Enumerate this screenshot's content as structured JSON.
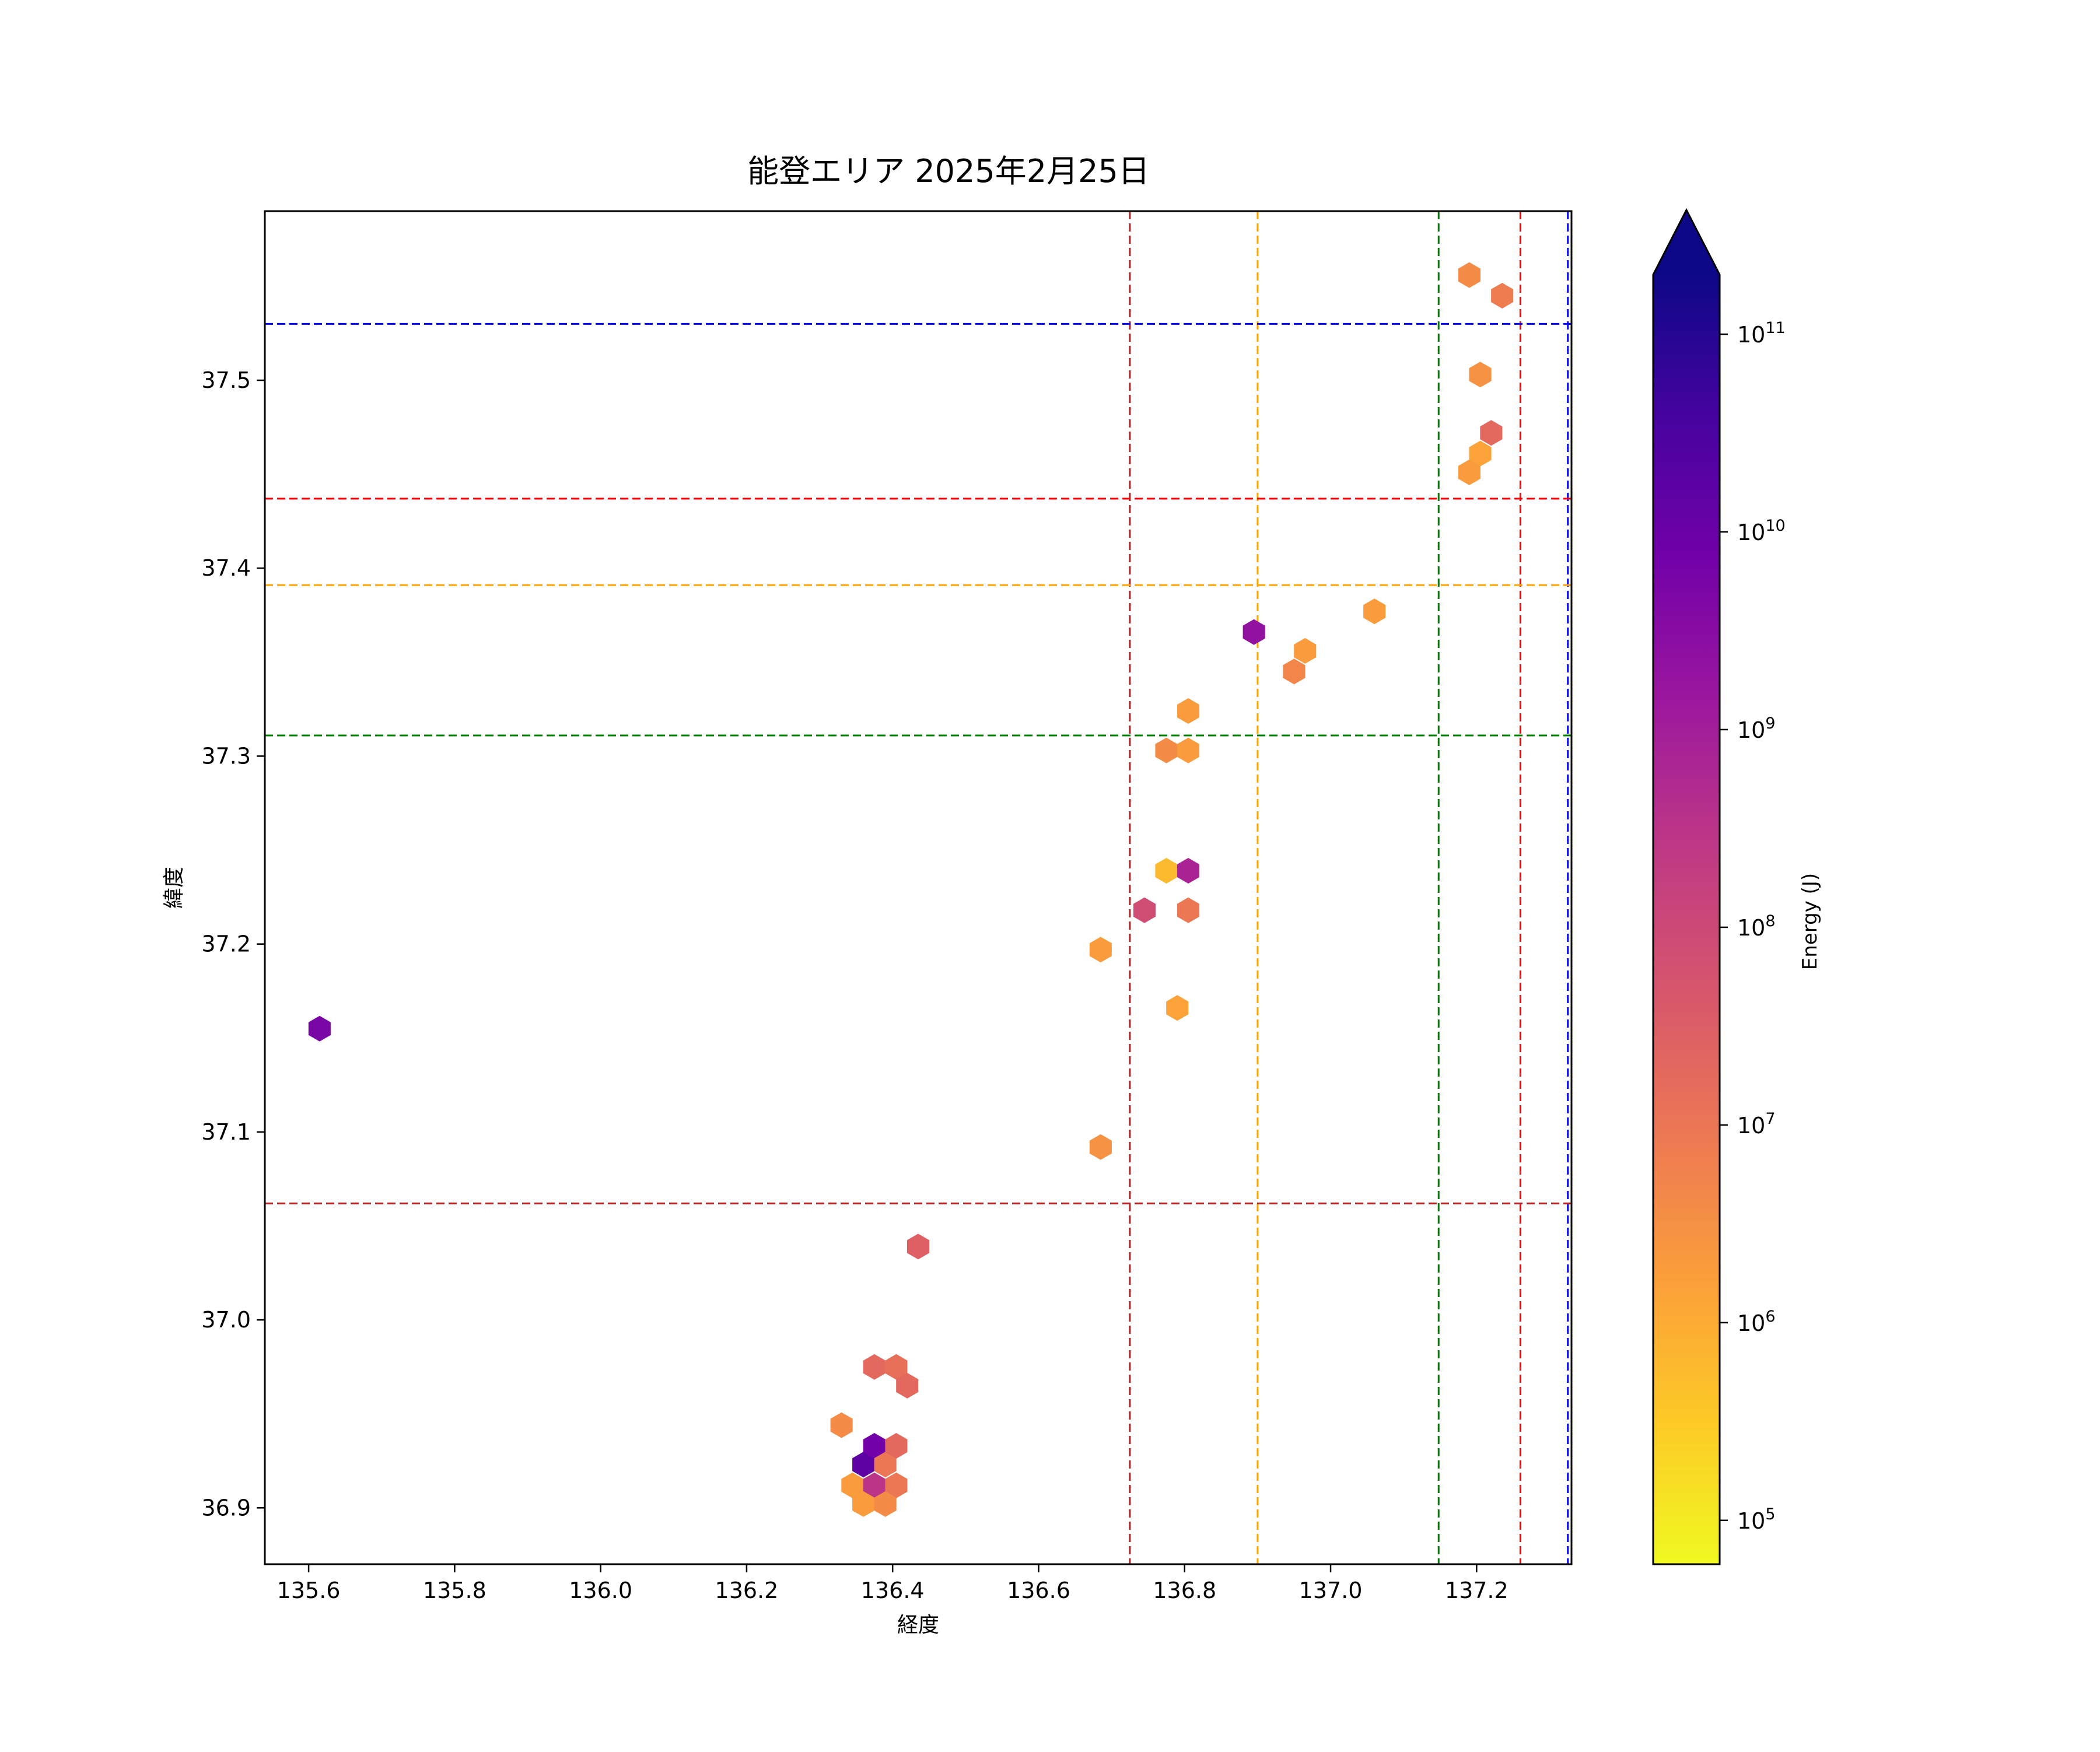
{
  "chart_data": {
    "type": "hexbin",
    "title": "能登エリア 2025年2月25日",
    "xlabel": "経度",
    "ylabel": "緯度",
    "xlim": [
      135.54,
      137.33
    ],
    "ylim": [
      36.87,
      37.59
    ],
    "xticks": [
      "135.6",
      "135.8",
      "136.0",
      "136.2",
      "136.4",
      "136.6",
      "136.8",
      "137.0",
      "137.2"
    ],
    "xtick_values": [
      135.6,
      135.8,
      136.0,
      136.2,
      136.4,
      136.6,
      136.8,
      137.0,
      137.2
    ],
    "yticks": [
      "36.9",
      "37.0",
      "37.1",
      "37.2",
      "37.3",
      "37.4",
      "37.5"
    ],
    "ytick_values": [
      36.9,
      37.0,
      37.1,
      37.2,
      37.3,
      37.4,
      37.5
    ],
    "grid": false,
    "colorbar": {
      "label": "Energy (J)",
      "scale": "log",
      "colormap": "plasma_r",
      "range": [
        60000,
        200000000000
      ],
      "extend": "max",
      "tick_values": [
        100000,
        1000000,
        10000000,
        100000000,
        1000000000,
        10000000000,
        100000000000
      ],
      "tick_bases": [
        "10",
        "10",
        "10",
        "10",
        "10",
        "10",
        "10"
      ],
      "tick_exponents": [
        "5",
        "6",
        "7",
        "8",
        "9",
        "10",
        "11"
      ]
    },
    "reference_lines": {
      "vertical": [
        {
          "x": 136.725,
          "color": "#b22222"
        },
        {
          "x": 136.9,
          "color": "#ffa500"
        },
        {
          "x": 137.148,
          "color": "#008000"
        },
        {
          "x": 137.26,
          "color": "#ff0000"
        },
        {
          "x": 137.325,
          "color": "#0000ff"
        }
      ],
      "horizontal": [
        {
          "y": 37.53,
          "color": "#0000ff"
        },
        {
          "y": 37.437,
          "color": "#ff0000"
        },
        {
          "y": 37.391,
          "color": "#ffa500"
        },
        {
          "y": 37.311,
          "color": "#008000"
        },
        {
          "y": 37.062,
          "color": "#b22222"
        }
      ]
    },
    "points": [
      {
        "lon": 135.615,
        "lat": 37.155,
        "energy": 5000000000
      },
      {
        "lon": 136.33,
        "lat": 36.944,
        "energy": 4000000
      },
      {
        "lon": 136.375,
        "lat": 36.975,
        "energy": 20000000
      },
      {
        "lon": 136.405,
        "lat": 36.975,
        "energy": 15000000
      },
      {
        "lon": 136.42,
        "lat": 36.965,
        "energy": 20000000
      },
      {
        "lon": 136.435,
        "lat": 37.039,
        "energy": 30000000
      },
      {
        "lon": 136.36,
        "lat": 36.923,
        "energy": 15000000000
      },
      {
        "lon": 136.375,
        "lat": 36.933,
        "energy": 7000000000
      },
      {
        "lon": 136.39,
        "lat": 36.923,
        "energy": 10000000
      },
      {
        "lon": 136.405,
        "lat": 36.933,
        "energy": 20000000
      },
      {
        "lon": 136.345,
        "lat": 36.912,
        "energy": 2000000
      },
      {
        "lon": 136.375,
        "lat": 36.912,
        "energy": 300000000
      },
      {
        "lon": 136.405,
        "lat": 36.912,
        "energy": 10000000
      },
      {
        "lon": 136.36,
        "lat": 36.902,
        "energy": 2000000
      },
      {
        "lon": 136.39,
        "lat": 36.902,
        "energy": 4000000
      },
      {
        "lon": 136.685,
        "lat": 37.092,
        "energy": 3000000
      },
      {
        "lon": 136.685,
        "lat": 37.197,
        "energy": 2000000
      },
      {
        "lon": 136.745,
        "lat": 37.218,
        "energy": 80000000
      },
      {
        "lon": 136.805,
        "lat": 37.218,
        "energy": 10000000
      },
      {
        "lon": 136.775,
        "lat": 37.239,
        "energy": 600000
      },
      {
        "lon": 136.805,
        "lat": 37.239,
        "energy": 700000000
      },
      {
        "lon": 136.79,
        "lat": 37.166,
        "energy": 1500000
      },
      {
        "lon": 136.775,
        "lat": 37.303,
        "energy": 4000000
      },
      {
        "lon": 136.805,
        "lat": 37.303,
        "energy": 2000000
      },
      {
        "lon": 136.805,
        "lat": 37.324,
        "energy": 2000000
      },
      {
        "lon": 136.895,
        "lat": 37.366,
        "energy": 2000000000
      },
      {
        "lon": 136.95,
        "lat": 37.345,
        "energy": 5000000
      },
      {
        "lon": 136.965,
        "lat": 37.356,
        "energy": 2000000
      },
      {
        "lon": 137.06,
        "lat": 37.377,
        "energy": 2000000
      },
      {
        "lon": 137.19,
        "lat": 37.556,
        "energy": 4000000
      },
      {
        "lon": 137.235,
        "lat": 37.545,
        "energy": 8000000
      },
      {
        "lon": 137.205,
        "lat": 37.503,
        "energy": 3000000
      },
      {
        "lon": 137.22,
        "lat": 37.472,
        "energy": 20000000
      },
      {
        "lon": 137.205,
        "lat": 37.461,
        "energy": 1500000
      },
      {
        "lon": 137.19,
        "lat": 37.451,
        "energy": 2000000
      }
    ]
  }
}
